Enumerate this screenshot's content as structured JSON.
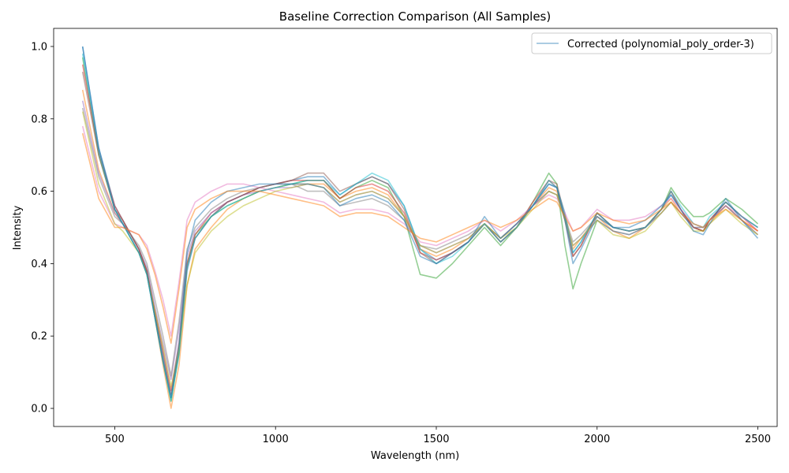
{
  "chart_data": {
    "type": "line",
    "title": "Baseline Correction Comparison (All Samples)",
    "xlabel": "Wavelength (nm)",
    "ylabel": "Intensity",
    "xlim": [
      310,
      2560
    ],
    "ylim": [
      -0.05,
      1.05
    ],
    "xticks": [
      500,
      1000,
      1500,
      2000,
      2500
    ],
    "yticks": [
      0.0,
      0.2,
      0.4,
      0.6,
      0.8,
      1.0
    ],
    "grid": false,
    "legend_position": "top-right",
    "legend": [
      "Corrected (polynomial_poly_order-3)"
    ],
    "colors": [
      "#1f77b4",
      "#ff7f0e",
      "#2ca02c",
      "#d62728",
      "#9467bd",
      "#8c564b",
      "#e377c2",
      "#7f7f7f",
      "#bcbd22",
      "#17becf"
    ],
    "x": [
      400,
      450,
      500,
      525,
      550,
      575,
      600,
      625,
      650,
      675,
      700,
      725,
      750,
      800,
      850,
      900,
      950,
      1000,
      1050,
      1100,
      1150,
      1200,
      1250,
      1300,
      1350,
      1400,
      1450,
      1500,
      1550,
      1600,
      1650,
      1700,
      1750,
      1800,
      1850,
      1875,
      1900,
      1925,
      1950,
      2000,
      2050,
      2100,
      2150,
      2200,
      2230,
      2260,
      2300,
      2330,
      2350,
      2400,
      2450,
      2500
    ],
    "series": [
      {
        "values": [
          1.0,
          0.72,
          0.56,
          0.52,
          0.48,
          0.44,
          0.38,
          0.26,
          0.15,
          0.03,
          0.15,
          0.38,
          0.47,
          0.53,
          0.57,
          0.59,
          0.61,
          0.62,
          0.63,
          0.64,
          0.64,
          0.59,
          0.62,
          0.64,
          0.62,
          0.56,
          0.44,
          0.41,
          0.43,
          0.46,
          0.51,
          0.46,
          0.5,
          0.56,
          0.62,
          0.61,
          0.54,
          0.43,
          0.46,
          0.54,
          0.5,
          0.49,
          0.5,
          0.55,
          0.59,
          0.55,
          0.5,
          0.49,
          0.52,
          0.57,
          0.53,
          0.5
        ]
      },
      {
        "values": [
          0.88,
          0.66,
          0.54,
          0.51,
          0.48,
          0.44,
          0.38,
          0.25,
          0.12,
          0.0,
          0.12,
          0.34,
          0.44,
          0.5,
          0.55,
          0.58,
          0.6,
          0.61,
          0.62,
          0.62,
          0.62,
          0.58,
          0.6,
          0.61,
          0.59,
          0.53,
          0.44,
          0.42,
          0.44,
          0.47,
          0.51,
          0.47,
          0.51,
          0.56,
          0.61,
          0.6,
          0.53,
          0.44,
          0.47,
          0.53,
          0.49,
          0.47,
          0.5,
          0.55,
          0.58,
          0.54,
          0.5,
          0.49,
          0.51,
          0.56,
          0.52,
          0.49
        ]
      },
      {
        "values": [
          0.97,
          0.7,
          0.55,
          0.51,
          0.47,
          0.43,
          0.37,
          0.25,
          0.13,
          0.02,
          0.16,
          0.4,
          0.48,
          0.53,
          0.56,
          0.58,
          0.6,
          0.61,
          0.62,
          0.63,
          0.63,
          0.58,
          0.61,
          0.63,
          0.61,
          0.53,
          0.37,
          0.36,
          0.4,
          0.45,
          0.5,
          0.45,
          0.5,
          0.57,
          0.65,
          0.62,
          0.45,
          0.33,
          0.4,
          0.52,
          0.49,
          0.48,
          0.5,
          0.55,
          0.61,
          0.57,
          0.53,
          0.53,
          0.54,
          0.58,
          0.55,
          0.51
        ]
      },
      {
        "values": [
          0.95,
          0.71,
          0.56,
          0.52,
          0.48,
          0.44,
          0.38,
          0.27,
          0.16,
          0.05,
          0.18,
          0.4,
          0.48,
          0.54,
          0.57,
          0.59,
          0.61,
          0.62,
          0.63,
          0.63,
          0.63,
          0.58,
          0.61,
          0.62,
          0.6,
          0.54,
          0.43,
          0.41,
          0.43,
          0.46,
          0.51,
          0.46,
          0.5,
          0.57,
          0.63,
          0.61,
          0.52,
          0.42,
          0.45,
          0.54,
          0.5,
          0.49,
          0.5,
          0.55,
          0.6,
          0.55,
          0.5,
          0.49,
          0.52,
          0.57,
          0.53,
          0.49
        ]
      },
      {
        "values": [
          0.85,
          0.65,
          0.54,
          0.51,
          0.48,
          0.44,
          0.39,
          0.28,
          0.18,
          0.08,
          0.22,
          0.42,
          0.49,
          0.54,
          0.57,
          0.59,
          0.6,
          0.61,
          0.61,
          0.62,
          0.61,
          0.57,
          0.59,
          0.6,
          0.58,
          0.53,
          0.45,
          0.43,
          0.45,
          0.47,
          0.51,
          0.47,
          0.51,
          0.56,
          0.6,
          0.59,
          0.52,
          0.45,
          0.47,
          0.52,
          0.49,
          0.48,
          0.5,
          0.54,
          0.57,
          0.54,
          0.5,
          0.5,
          0.52,
          0.56,
          0.52,
          0.48
        ]
      },
      {
        "values": [
          0.93,
          0.7,
          0.55,
          0.52,
          0.48,
          0.44,
          0.38,
          0.26,
          0.14,
          0.04,
          0.16,
          0.39,
          0.47,
          0.53,
          0.57,
          0.59,
          0.61,
          0.62,
          0.63,
          0.65,
          0.65,
          0.6,
          0.62,
          0.64,
          0.62,
          0.55,
          0.43,
          0.4,
          0.43,
          0.46,
          0.51,
          0.46,
          0.5,
          0.56,
          0.63,
          0.62,
          0.53,
          0.42,
          0.45,
          0.54,
          0.5,
          0.49,
          0.5,
          0.55,
          0.6,
          0.55,
          0.5,
          0.49,
          0.52,
          0.57,
          0.53,
          0.5
        ]
      },
      {
        "values": [
          0.78,
          0.6,
          0.51,
          0.5,
          0.49,
          0.48,
          0.45,
          0.38,
          0.3,
          0.2,
          0.35,
          0.52,
          0.57,
          0.6,
          0.62,
          0.62,
          0.61,
          0.6,
          0.59,
          0.58,
          0.57,
          0.54,
          0.55,
          0.55,
          0.54,
          0.51,
          0.46,
          0.45,
          0.47,
          0.49,
          0.52,
          0.49,
          0.52,
          0.56,
          0.59,
          0.58,
          0.54,
          0.49,
          0.5,
          0.55,
          0.52,
          0.52,
          0.53,
          0.56,
          0.58,
          0.55,
          0.51,
          0.5,
          0.52,
          0.56,
          0.53,
          0.49
        ]
      },
      {
        "values": [
          0.83,
          0.64,
          0.53,
          0.51,
          0.48,
          0.45,
          0.4,
          0.3,
          0.2,
          0.09,
          0.24,
          0.44,
          0.5,
          0.55,
          0.58,
          0.6,
          0.61,
          0.62,
          0.62,
          0.6,
          0.6,
          0.56,
          0.57,
          0.58,
          0.56,
          0.52,
          0.45,
          0.44,
          0.46,
          0.48,
          0.51,
          0.47,
          0.51,
          0.56,
          0.6,
          0.59,
          0.53,
          0.46,
          0.48,
          0.53,
          0.5,
          0.49,
          0.5,
          0.54,
          0.57,
          0.54,
          0.5,
          0.5,
          0.52,
          0.56,
          0.52,
          0.48
        ]
      },
      {
        "values": [
          0.82,
          0.62,
          0.51,
          0.49,
          0.46,
          0.43,
          0.37,
          0.27,
          0.17,
          0.06,
          0.16,
          0.34,
          0.43,
          0.49,
          0.53,
          0.56,
          0.58,
          0.6,
          0.61,
          0.62,
          0.61,
          0.57,
          0.59,
          0.6,
          0.58,
          0.53,
          0.45,
          0.43,
          0.45,
          0.47,
          0.51,
          0.47,
          0.5,
          0.55,
          0.6,
          0.59,
          0.52,
          0.45,
          0.47,
          0.52,
          0.48,
          0.47,
          0.49,
          0.54,
          0.57,
          0.53,
          0.49,
          0.49,
          0.51,
          0.55,
          0.51,
          0.48
        ]
      },
      {
        "values": [
          0.98,
          0.71,
          0.55,
          0.51,
          0.47,
          0.43,
          0.37,
          0.25,
          0.13,
          0.02,
          0.15,
          0.39,
          0.47,
          0.53,
          0.56,
          0.58,
          0.6,
          0.61,
          0.62,
          0.63,
          0.63,
          0.59,
          0.62,
          0.65,
          0.63,
          0.56,
          0.44,
          0.4,
          0.42,
          0.46,
          0.51,
          0.46,
          0.5,
          0.56,
          0.63,
          0.61,
          0.53,
          0.43,
          0.46,
          0.54,
          0.5,
          0.49,
          0.5,
          0.55,
          0.6,
          0.56,
          0.51,
          0.5,
          0.53,
          0.57,
          0.53,
          0.5
        ]
      },
      {
        "values": [
          1.0,
          0.72,
          0.55,
          0.51,
          0.47,
          0.43,
          0.37,
          0.25,
          0.13,
          0.03,
          0.18,
          0.43,
          0.52,
          0.57,
          0.6,
          0.61,
          0.62,
          0.62,
          0.62,
          0.62,
          0.61,
          0.56,
          0.58,
          0.59,
          0.57,
          0.52,
          0.42,
          0.4,
          0.43,
          0.46,
          0.53,
          0.47,
          0.51,
          0.56,
          0.62,
          0.61,
          0.52,
          0.4,
          0.44,
          0.53,
          0.5,
          0.5,
          0.52,
          0.56,
          0.59,
          0.55,
          0.49,
          0.48,
          0.51,
          0.58,
          0.52,
          0.47
        ]
      },
      {
        "values": [
          0.76,
          0.58,
          0.5,
          0.5,
          0.49,
          0.48,
          0.44,
          0.37,
          0.28,
          0.18,
          0.33,
          0.5,
          0.55,
          0.58,
          0.6,
          0.6,
          0.6,
          0.59,
          0.58,
          0.57,
          0.56,
          0.53,
          0.54,
          0.54,
          0.53,
          0.5,
          0.47,
          0.46,
          0.48,
          0.5,
          0.52,
          0.5,
          0.52,
          0.55,
          0.58,
          0.57,
          0.53,
          0.49,
          0.5,
          0.54,
          0.52,
          0.51,
          0.52,
          0.55,
          0.57,
          0.54,
          0.51,
          0.5,
          0.52,
          0.55,
          0.52,
          0.49
        ]
      }
    ]
  }
}
